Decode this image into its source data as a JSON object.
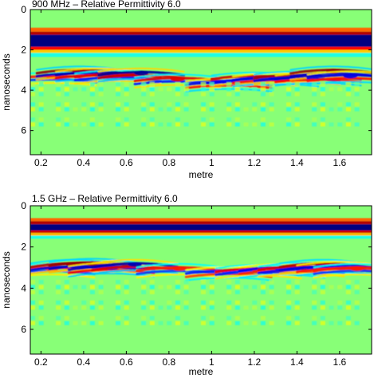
{
  "colors": {
    "background": "#88ff77",
    "colormap": "jet"
  },
  "chart_data": [
    {
      "type": "heatmap",
      "title": "900 MHz – Relative Permittivity 6.0",
      "xlabel": "metre",
      "ylabel": "nanoseconds",
      "xlim": [
        0.15,
        1.75
      ],
      "ylim": [
        0,
        7.2
      ],
      "y_reversed": true,
      "xticks": [
        0.2,
        0.4,
        0.6,
        0.8,
        1,
        1.2,
        1.4,
        1.6
      ],
      "xtick_labels": [
        "0.2",
        "0.4",
        "0.6",
        "0.8",
        "1",
        "1.2",
        "1.4",
        "1.6"
      ],
      "yticks": [
        0,
        2,
        4,
        6
      ],
      "ytick_labels": [
        "0",
        "2",
        "4",
        "6"
      ],
      "direct_wave_bands": [
        {
          "t_start": 0.9,
          "t_end": 1.1,
          "value": 0.55
        },
        {
          "t_start": 1.1,
          "t_end": 1.25,
          "value": 0.9
        },
        {
          "t_start": 1.25,
          "t_end": 1.85,
          "value": -1.0
        },
        {
          "t_start": 1.85,
          "t_end": 2.0,
          "value": 0.75
        },
        {
          "t_start": 2.0,
          "t_end": 2.15,
          "value": 0.35
        },
        {
          "t_start": 2.15,
          "t_end": 2.35,
          "value": -0.2
        }
      ],
      "hyperbolas": [
        {
          "x": 0.26,
          "t": 3.3,
          "amp": 0.7
        },
        {
          "x": 0.38,
          "t": 3.0,
          "amp": 0.95
        },
        {
          "x": 0.47,
          "t": 3.1,
          "amp": -0.9
        },
        {
          "x": 0.56,
          "t": 3.2,
          "amp": 0.8
        },
        {
          "x": 0.67,
          "t": 3.1,
          "amp": -0.95
        },
        {
          "x": 0.84,
          "t": 3.4,
          "amp": 0.8
        },
        {
          "x": 1.08,
          "t": 3.6,
          "amp": -0.8
        },
        {
          "x": 1.2,
          "t": 3.3,
          "amp": 0.85
        },
        {
          "x": 1.3,
          "t": 3.35,
          "amp": -0.8
        },
        {
          "x": 1.4,
          "t": 3.25,
          "amp": 0.9
        },
        {
          "x": 1.5,
          "t": 3.3,
          "amp": -0.85
        },
        {
          "x": 1.57,
          "t": 3.0,
          "amp": 0.95
        },
        {
          "x": 1.65,
          "t": 3.25,
          "amp": -0.8
        }
      ]
    },
    {
      "type": "heatmap",
      "title": "1.5 GHz – Relative Permittivity 6.0",
      "xlabel": "metre",
      "ylabel": "nanoseconds",
      "xlim": [
        0.15,
        1.75
      ],
      "ylim": [
        0,
        7.2
      ],
      "y_reversed": true,
      "xticks": [
        0.2,
        0.4,
        0.6,
        0.8,
        1,
        1.2,
        1.4,
        1.6
      ],
      "xtick_labels": [
        "0.2",
        "0.4",
        "0.6",
        "0.8",
        "1",
        "1.2",
        "1.4",
        "1.6"
      ],
      "yticks": [
        0,
        2,
        4,
        6
      ],
      "ytick_labels": [
        "0",
        "2",
        "4",
        "6"
      ],
      "direct_wave_bands": [
        {
          "t_start": 0.6,
          "t_end": 0.75,
          "value": 0.55
        },
        {
          "t_start": 0.75,
          "t_end": 0.9,
          "value": 0.9
        },
        {
          "t_start": 0.9,
          "t_end": 1.2,
          "value": -1.0
        },
        {
          "t_start": 1.2,
          "t_end": 1.32,
          "value": 0.85
        },
        {
          "t_start": 1.32,
          "t_end": 1.45,
          "value": 0.4
        },
        {
          "t_start": 1.45,
          "t_end": 1.6,
          "value": -0.2
        }
      ],
      "hyperbolas": [
        {
          "x": 0.25,
          "t": 3.0,
          "amp": 0.7
        },
        {
          "x": 0.35,
          "t": 2.8,
          "amp": 0.9
        },
        {
          "x": 0.44,
          "t": 2.75,
          "amp": 0.95
        },
        {
          "x": 0.53,
          "t": 2.95,
          "amp": -0.85
        },
        {
          "x": 0.64,
          "t": 2.8,
          "amp": -0.9
        },
        {
          "x": 0.85,
          "t": 3.0,
          "amp": 0.7
        },
        {
          "x": 1.08,
          "t": 3.15,
          "amp": -0.7
        },
        {
          "x": 1.22,
          "t": 3.05,
          "amp": 0.75
        },
        {
          "x": 1.33,
          "t": 3.0,
          "amp": -0.75
        },
        {
          "x": 1.42,
          "t": 2.95,
          "amp": 0.8
        },
        {
          "x": 1.52,
          "t": 2.8,
          "amp": 0.9
        },
        {
          "x": 1.6,
          "t": 2.9,
          "amp": -0.8
        },
        {
          "x": 1.68,
          "t": 3.0,
          "amp": 0.7
        }
      ]
    }
  ]
}
